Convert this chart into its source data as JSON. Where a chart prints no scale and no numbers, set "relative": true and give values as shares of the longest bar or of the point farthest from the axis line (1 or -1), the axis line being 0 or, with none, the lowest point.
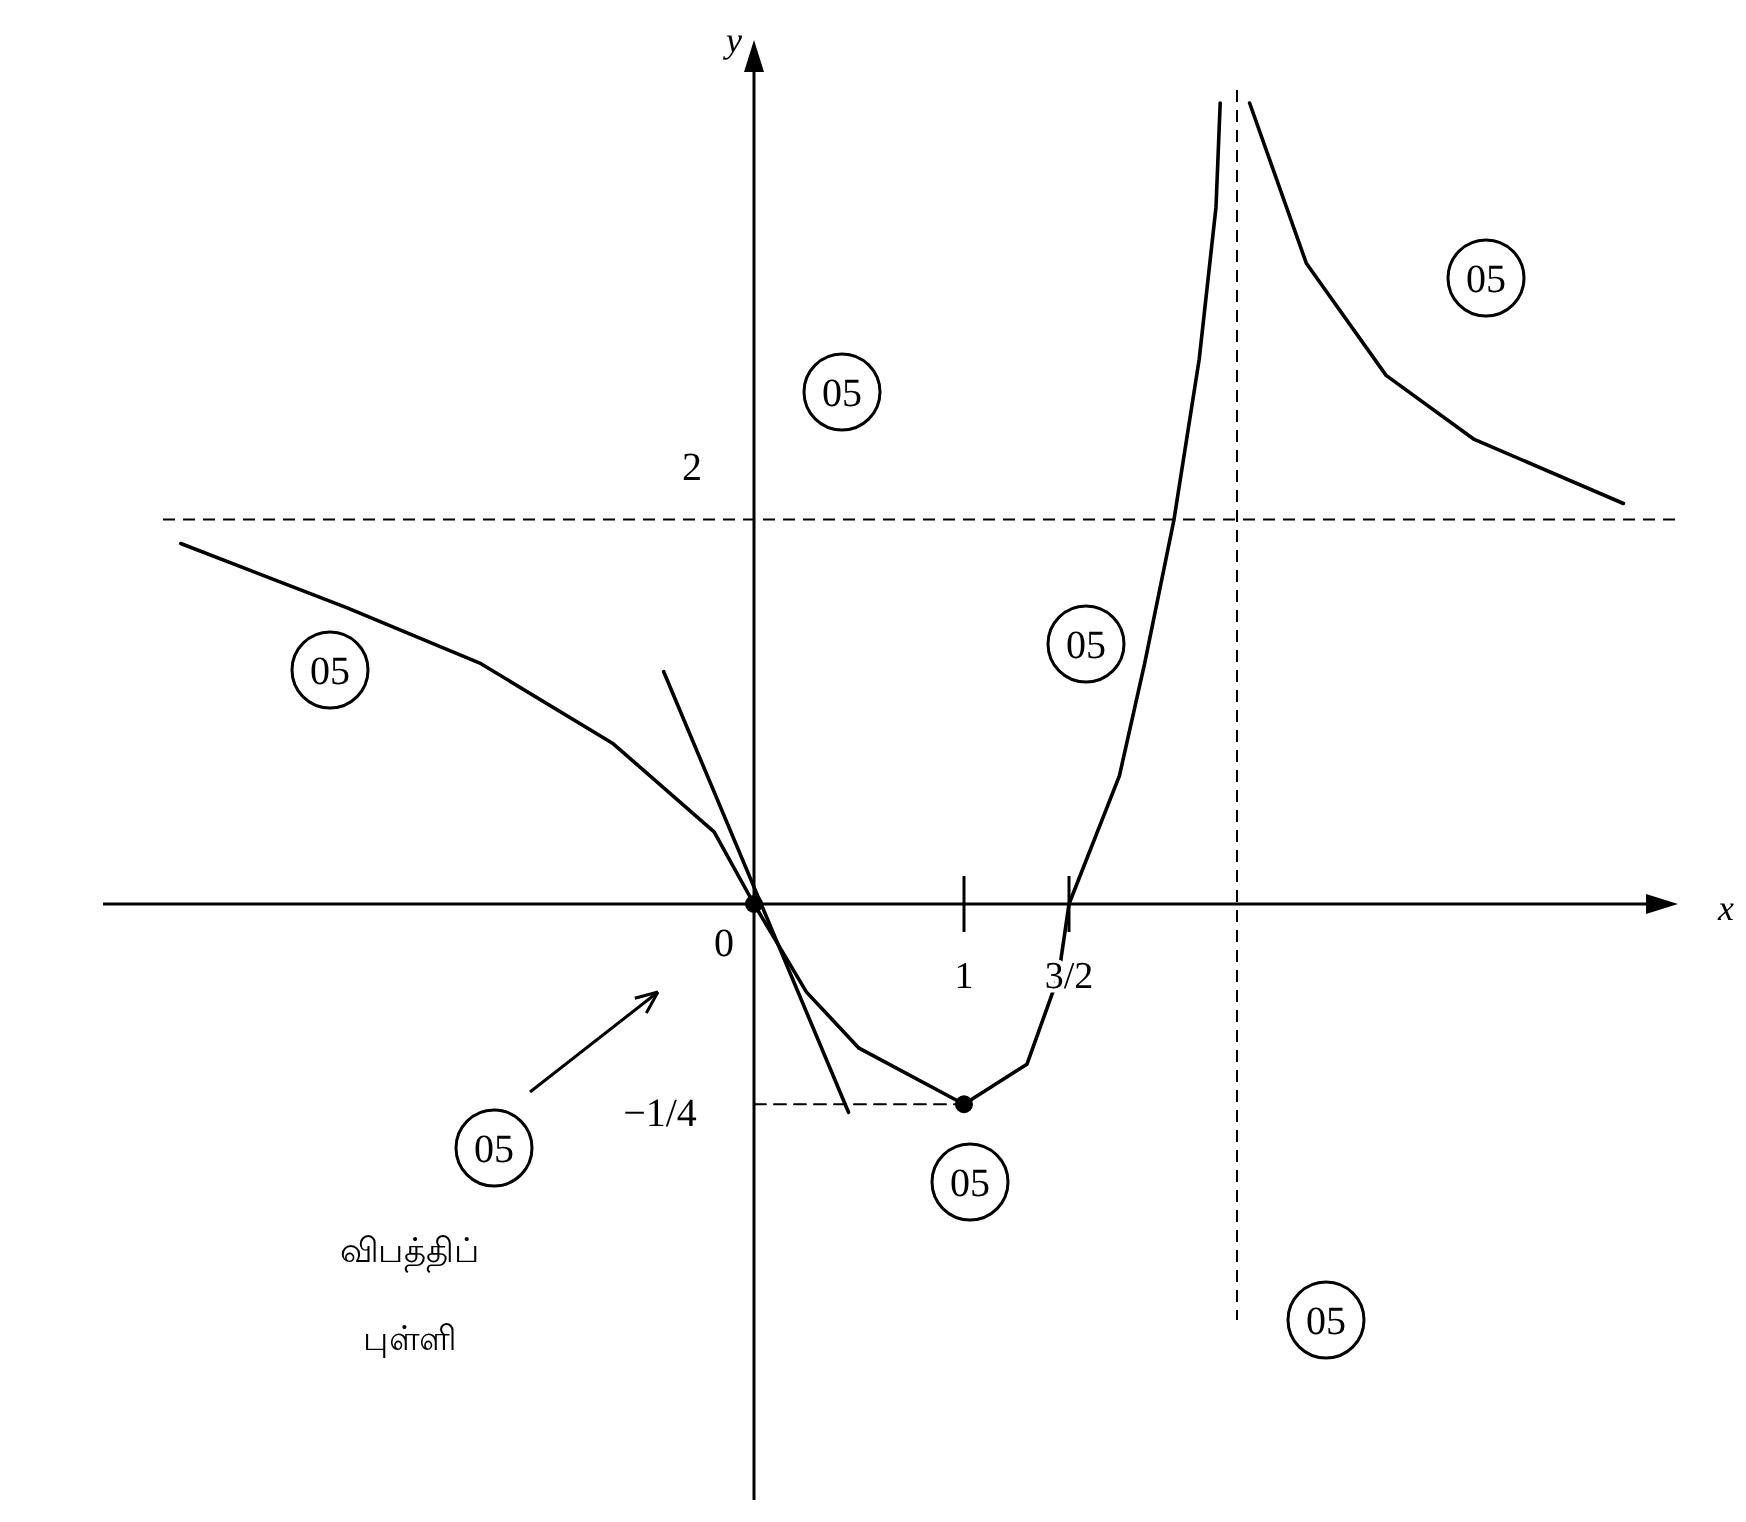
{
  "chart_data": {
    "type": "line",
    "xlabel": "x",
    "ylabel": "y",
    "relative": true,
    "xlim": [
      -3.1,
      4.4
    ],
    "xticks": [
      1,
      {
        "value": 1.5,
        "label": "3/2"
      }
    ],
    "series": [
      {
        "color": "#000000",
        "x": [
          -2.73,
          -1.94,
          -1.3,
          -0.67,
          -0.19,
          0
        ],
        "values": [
          0.45,
          0.37,
          0.3,
          0.2,
          0.09,
          0
        ]
      },
      {
        "color": "#000000",
        "x": [
          0,
          0.25,
          0.5,
          1,
          1.3,
          1.45,
          1.5,
          1.74,
          1.86,
          2.0,
          2.12,
          2.2,
          2.22
        ],
        "values": [
          0,
          -0.11,
          -0.18,
          -0.25,
          -0.2,
          -0.09,
          0,
          0.16,
          0.3,
          0.48,
          0.68,
          0.87,
          1
        ]
      },
      {
        "color": "#000000",
        "x": [
          2.36,
          2.63,
          3.01,
          3.43,
          4.14
        ],
        "values": [
          1,
          0.8,
          0.66,
          0.58,
          0.5
        ]
      },
      {
        "color": "#000000",
        "x": [
          -0.43,
          0.45
        ],
        "values": [
          0.29,
          -0.26
        ]
      },
      {
        "color": "#000000",
        "line_style": "dashed",
        "x": [
          0,
          1
        ],
        "values": [
          -0.25,
          -0.25
        ]
      },
      {
        "type": "scatter",
        "color": "#000000",
        "marker": "circle",
        "x": [
          0,
          1
        ],
        "values": [
          0,
          -0.25
        ]
      }
    ],
    "ref_lines": [
      {
        "axis": "y",
        "value": 0.48,
        "line_style": "dashed"
      },
      {
        "axis": "x",
        "value": 2.3,
        "line_style": "dashed"
      }
    ],
    "annotations": [
      "0",
      "2",
      "−1/4",
      "05",
      "05",
      "05",
      "05",
      "05",
      "05",
      "05",
      "விபத்திப் புள்ளி"
    ]
  }
}
